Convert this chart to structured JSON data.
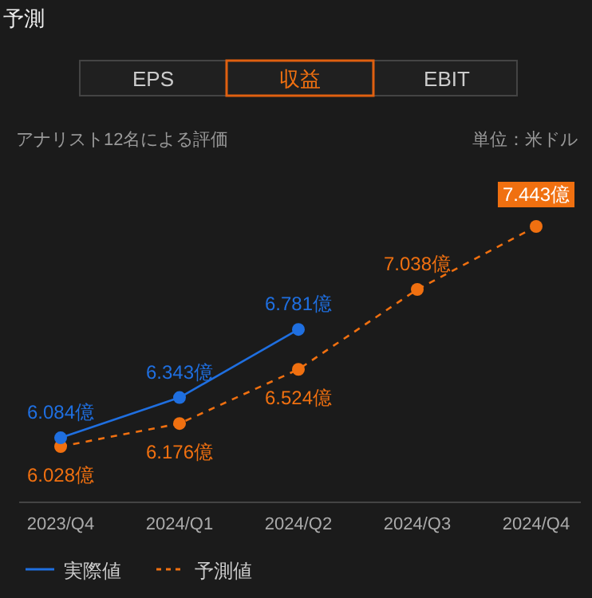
{
  "chart_data": {
    "type": "line",
    "title": "予測",
    "subtitle": "アナリスト12名による評価",
    "annotations": [
      "EPS",
      "収益",
      "EBIT",
      "単位：米ドル"
    ],
    "categories": [
      "2023/Q4",
      "2024/Q1",
      "2024/Q2",
      "2024/Q3",
      "2024/Q4"
    ],
    "series": [
      {
        "name": "実際値",
        "color": "#1f6fe0",
        "line_style": "solid",
        "values": [
          6.084,
          6.343,
          6.781,
          null,
          null
        ],
        "value_labels": [
          "6.084億",
          "6.343億",
          "6.781億",
          null,
          null
        ]
      },
      {
        "name": "予測値",
        "color": "#f07010",
        "line_style": "dashed",
        "values": [
          6.028,
          6.176,
          6.524,
          7.038,
          7.443
        ],
        "value_labels": [
          "6.028億",
          "6.176億",
          "6.524億",
          "7.038億",
          "7.443億"
        ]
      }
    ],
    "marker": "circle",
    "legend": "bottom left",
    "grid": false
  }
}
